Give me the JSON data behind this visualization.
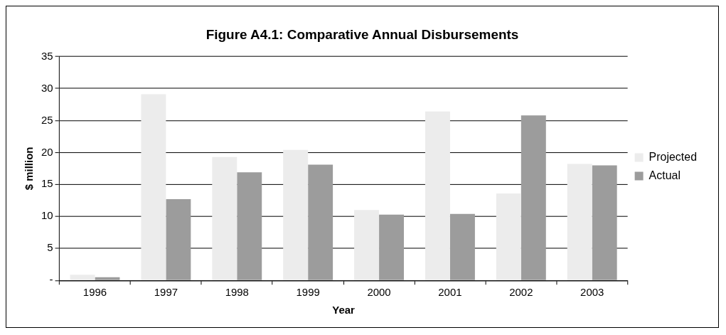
{
  "chart_data": {
    "type": "bar",
    "title": "Figure A4.1: Comparative Annual Disbursements",
    "xlabel": "Year",
    "ylabel": "$ million",
    "categories": [
      "1996",
      "1997",
      "1998",
      "1999",
      "2000",
      "2001",
      "2002",
      "2003"
    ],
    "series": [
      {
        "name": "Projected",
        "color": "#ececec",
        "values": [
          0.9,
          29.1,
          19.3,
          20.4,
          11.0,
          26.4,
          13.6,
          18.2
        ]
      },
      {
        "name": "Actual",
        "color": "#9c9c9c",
        "values": [
          0.5,
          12.7,
          16.9,
          18.1,
          10.3,
          10.4,
          25.8,
          18.0
        ]
      }
    ],
    "ylim": [
      0,
      35
    ],
    "yticks": [
      {
        "value": 0,
        "label": "-"
      },
      5,
      10,
      15,
      20,
      25,
      30,
      35
    ],
    "grid": "y",
    "legend": "right"
  }
}
